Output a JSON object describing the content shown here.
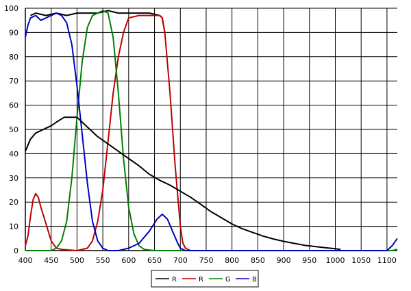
{
  "chart_data": {
    "type": "line",
    "title": "",
    "xlabel": "",
    "ylabel": "",
    "xlim": [
      400,
      1120
    ],
    "ylim": [
      0,
      100
    ],
    "grid": true,
    "legend_position": "bottom",
    "x_ticks": [
      400,
      450,
      500,
      550,
      600,
      650,
      700,
      750,
      800,
      850,
      900,
      950,
      1000,
      1050,
      1100
    ],
    "x_tick_labels": [
      "400",
      "450",
      "500",
      "550",
      "600",
      "650",
      "700",
      "750",
      "800",
      "850",
      "900",
      "950",
      "1000",
      "1050",
      "1100"
    ],
    "y_ticks": [
      0,
      10,
      20,
      30,
      40,
      50,
      60,
      70,
      80,
      90,
      100
    ],
    "y_tick_labels": [
      "0",
      "10",
      "20",
      "30",
      "40",
      "50",
      "60",
      "70",
      "80",
      "90",
      "100"
    ],
    "series": [
      {
        "name": "R",
        "color": "#000000",
        "points": [
          [
            410,
            97
          ],
          [
            420,
            98
          ],
          [
            440,
            97
          ],
          [
            460,
            98
          ],
          [
            480,
            97
          ],
          [
            500,
            98
          ],
          [
            520,
            98
          ],
          [
            540,
            98
          ],
          [
            560,
            99
          ],
          [
            580,
            98
          ],
          [
            600,
            98
          ],
          [
            620,
            98
          ],
          [
            640,
            98
          ],
          [
            660,
            97
          ],
          [
            665,
            96
          ],
          [
            670,
            90
          ]
        ]
      },
      {
        "name": "R",
        "color": "#c00000",
        "points": [
          [
            400,
            2
          ],
          [
            405,
            6
          ],
          [
            410,
            14
          ],
          [
            415,
            21
          ],
          [
            420,
            23.5
          ],
          [
            425,
            22
          ],
          [
            430,
            18
          ],
          [
            440,
            11
          ],
          [
            450,
            4
          ],
          [
            460,
            1
          ],
          [
            470,
            0.5
          ],
          [
            500,
            0
          ],
          [
            520,
            1
          ],
          [
            530,
            4
          ],
          [
            540,
            12
          ],
          [
            550,
            25
          ],
          [
            560,
            45
          ],
          [
            570,
            65
          ],
          [
            580,
            80
          ],
          [
            590,
            90
          ],
          [
            600,
            96
          ],
          [
            620,
            97
          ],
          [
            640,
            97
          ],
          [
            660,
            97
          ],
          [
            665,
            96
          ],
          [
            670,
            90
          ],
          [
            680,
            65
          ],
          [
            690,
            35
          ],
          [
            700,
            10
          ],
          [
            705,
            3
          ],
          [
            710,
            1
          ],
          [
            720,
            0
          ]
        ]
      },
      {
        "name": "G",
        "color": "#008000",
        "points": [
          [
            400,
            0
          ],
          [
            450,
            0
          ],
          [
            460,
            1
          ],
          [
            470,
            4
          ],
          [
            480,
            12
          ],
          [
            490,
            30
          ],
          [
            500,
            55
          ],
          [
            510,
            78
          ],
          [
            520,
            92
          ],
          [
            530,
            97
          ],
          [
            540,
            98
          ],
          [
            550,
            99
          ],
          [
            560,
            98
          ],
          [
            570,
            88
          ],
          [
            580,
            65
          ],
          [
            590,
            38
          ],
          [
            600,
            18
          ],
          [
            610,
            7
          ],
          [
            620,
            2
          ],
          [
            630,
            0.5
          ],
          [
            650,
            0
          ],
          [
            1110,
            0
          ],
          [
            1120,
            0.5
          ]
        ]
      },
      {
        "name": "B",
        "color": "#0000c0",
        "points": [
          [
            400,
            88
          ],
          [
            405,
            93
          ],
          [
            410,
            96
          ],
          [
            420,
            97
          ],
          [
            430,
            95
          ],
          [
            440,
            96
          ],
          [
            450,
            97
          ],
          [
            460,
            98
          ],
          [
            470,
            97
          ],
          [
            480,
            94
          ],
          [
            490,
            85
          ],
          [
            500,
            68
          ],
          [
            510,
            48
          ],
          [
            520,
            28
          ],
          [
            530,
            12
          ],
          [
            540,
            4
          ],
          [
            550,
            1
          ],
          [
            560,
            0
          ],
          [
            580,
            0
          ],
          [
            600,
            1
          ],
          [
            620,
            3
          ],
          [
            640,
            8
          ],
          [
            655,
            13
          ],
          [
            665,
            15
          ],
          [
            675,
            13
          ],
          [
            685,
            8
          ],
          [
            695,
            3
          ],
          [
            700,
            1
          ],
          [
            710,
            0
          ],
          [
            1050,
            0
          ],
          [
            1100,
            0
          ],
          [
            1110,
            2
          ],
          [
            1120,
            5
          ]
        ]
      },
      {
        "name": "",
        "color": "#000000",
        "points": [
          [
            400,
            41
          ],
          [
            410,
            46
          ],
          [
            420,
            48.5
          ],
          [
            440,
            50.5
          ],
          [
            450,
            51.5
          ],
          [
            460,
            53
          ],
          [
            475,
            55
          ],
          [
            500,
            55
          ],
          [
            510,
            53
          ],
          [
            520,
            51
          ],
          [
            540,
            47
          ],
          [
            560,
            44
          ],
          [
            580,
            41
          ],
          [
            600,
            38
          ],
          [
            620,
            35
          ],
          [
            640,
            31.5
          ],
          [
            660,
            29
          ],
          [
            680,
            27
          ],
          [
            700,
            24.5
          ],
          [
            720,
            22
          ],
          [
            740,
            19
          ],
          [
            760,
            16
          ],
          [
            780,
            13.5
          ],
          [
            800,
            11
          ],
          [
            820,
            9
          ],
          [
            840,
            7.5
          ],
          [
            860,
            6
          ],
          [
            880,
            4.8
          ],
          [
            900,
            3.8
          ],
          [
            920,
            3
          ],
          [
            940,
            2.2
          ],
          [
            960,
            1.7
          ],
          [
            980,
            1.2
          ],
          [
            1000,
            0.8
          ],
          [
            1010,
            0.5
          ]
        ]
      }
    ],
    "legend": [
      {
        "label": "R",
        "color": "#000000"
      },
      {
        "label": "R",
        "color": "#c00000"
      },
      {
        "label": "G",
        "color": "#008000"
      },
      {
        "label": "B",
        "color": "#0000c0"
      }
    ]
  }
}
